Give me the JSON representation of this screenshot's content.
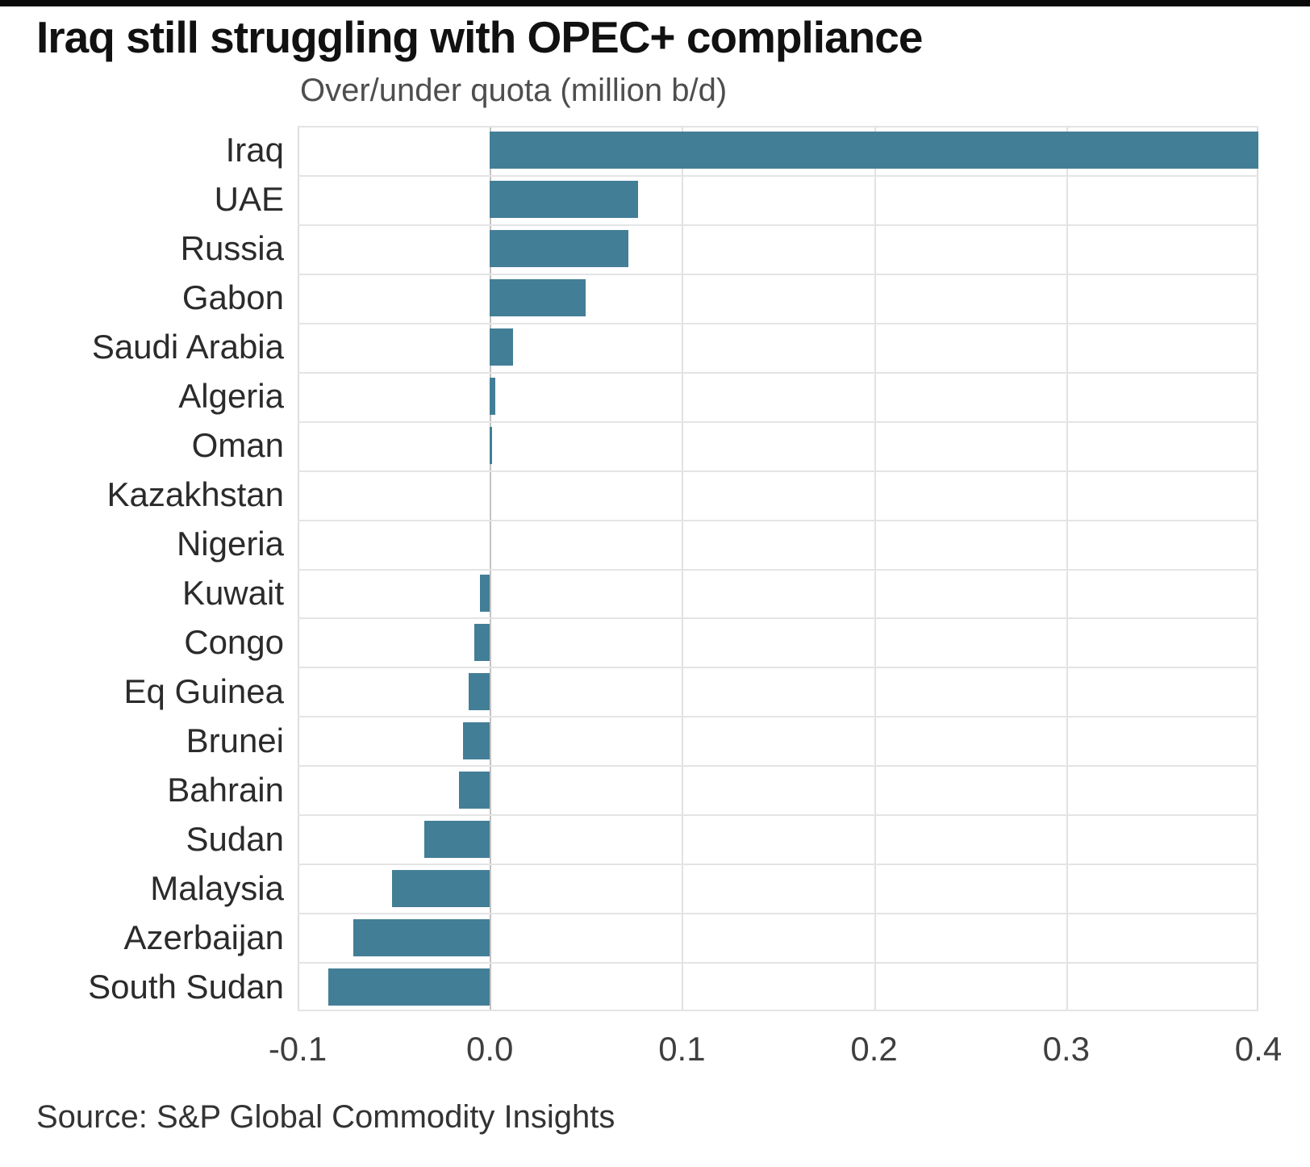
{
  "header": {
    "title": "Iraq still struggling with OPEC+ compliance",
    "subtitle": "Over/under quota (million b/d)"
  },
  "source": "Source: S&P Global Commodity Insights",
  "colors": {
    "bar": "#437e97",
    "grid": "#e2e2e2",
    "zero_line": "#c2c2c2",
    "edge_line": "#dedede",
    "row_line": "#e4e4e4",
    "title_text": "#111111",
    "subtitle_text": "#4e4e4e",
    "label_text": "#2b2b2b",
    "tick_text": "#3f3f3f",
    "top_strip": "#0a0a0a"
  },
  "chart_data": {
    "type": "bar",
    "orientation": "horizontal",
    "title": "Iraq still struggling with OPEC+ compliance",
    "xlabel": "Over/under quota (million b/d)",
    "categories": [
      "Iraq",
      "UAE",
      "Russia",
      "Gabon",
      "Saudi Arabia",
      "Algeria",
      "Oman",
      "Kazakhstan",
      "Nigeria",
      "Kuwait",
      "Congo",
      "Eq Guinea",
      "Brunei",
      "Bahrain",
      "Sudan",
      "Malaysia",
      "Azerbaijan",
      "South Sudan"
    ],
    "values": [
      0.4,
      0.077,
      0.072,
      0.05,
      0.012,
      0.003,
      0.001,
      0.0,
      0.0,
      -0.005,
      -0.008,
      -0.011,
      -0.014,
      -0.016,
      -0.034,
      -0.051,
      -0.071,
      -0.084
    ],
    "xlim": [
      -0.1,
      0.4
    ],
    "xticks": [
      -0.1,
      0.0,
      0.1,
      0.2,
      0.3,
      0.4
    ],
    "xtick_labels": [
      "-0.1",
      "0.0",
      "0.1",
      "0.2",
      "0.3",
      "0.4"
    ],
    "grid": true,
    "legend": null
  }
}
